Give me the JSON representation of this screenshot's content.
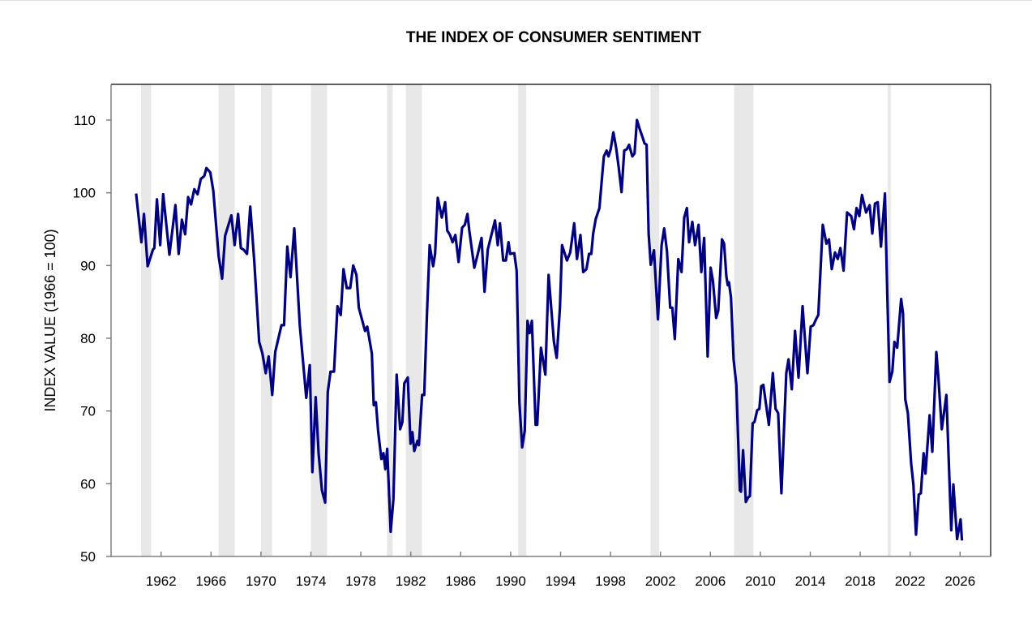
{
  "chart_data": {
    "type": "line",
    "title": "THE INDEX OF CONSUMER SENTIMENT",
    "xlabel": "",
    "ylabel": "INDEX VALUE (1966 = 100)",
    "xlim": [
      1960,
      2028.2
    ],
    "ylim": [
      50,
      115
    ],
    "yticks": [
      50,
      60,
      70,
      80,
      90,
      100,
      110
    ],
    "xticks": [
      1962,
      1966,
      1970,
      1974,
      1978,
      1982,
      1986,
      1990,
      1994,
      1998,
      2002,
      2006,
      2010,
      2014,
      2018,
      2022,
      2026
    ],
    "grid": false,
    "line_color": "#000080",
    "band_color": "#e8e8e8",
    "shaded_periods": [
      [
        1960.4,
        1961.2
      ],
      [
        1966.6,
        1967.9
      ],
      [
        1970.0,
        1970.9
      ],
      [
        1974.0,
        1975.3
      ],
      [
        1980.1,
        1980.55
      ],
      [
        1981.6,
        1982.9
      ],
      [
        1990.6,
        1991.25
      ],
      [
        2001.2,
        2001.9
      ],
      [
        2007.9,
        2009.45
      ],
      [
        2020.2,
        2020.45
      ]
    ],
    "series": [
      {
        "name": "Index of Consumer Sentiment",
        "x": [
          1960.0,
          1960.42,
          1960.63,
          1960.92,
          1961.35,
          1961.46,
          1961.67,
          1961.93,
          1962.17,
          1962.67,
          1963.15,
          1963.41,
          1963.67,
          1963.93,
          1964.17,
          1964.4,
          1964.66,
          1964.92,
          1965.18,
          1965.46,
          1965.63,
          1965.94,
          1966.18,
          1966.61,
          1966.89,
          1967.13,
          1967.63,
          1967.89,
          1968.17,
          1968.39,
          1968.6,
          1968.88,
          1969.14,
          1969.47,
          1969.86,
          1970.12,
          1970.38,
          1970.62,
          1970.9,
          1971.14,
          1971.64,
          1971.85,
          1972.11,
          1972.37,
          1972.67,
          1973.11,
          1973.63,
          1973.91,
          1974.12,
          1974.38,
          1974.62,
          1974.88,
          1975.14,
          1975.35,
          1975.57,
          1975.85,
          1976.13,
          1976.39,
          1976.61,
          1976.87,
          1977.15,
          1977.39,
          1977.65,
          1977.84,
          1978.34,
          1978.51,
          1978.66,
          1978.88,
          1979.03,
          1979.21,
          1979.38,
          1979.64,
          1979.81,
          1979.96,
          1980.11,
          1980.39,
          1980.61,
          1980.87,
          1981.15,
          1981.33,
          1981.48,
          1981.76,
          1981.98,
          1982.13,
          1982.28,
          1982.54,
          1982.65,
          1982.91,
          1983.08,
          1983.3,
          1983.51,
          1983.79,
          1983.95,
          1984.16,
          1984.49,
          1984.75,
          1984.92,
          1985.14,
          1985.35,
          1985.57,
          1985.83,
          1986.11,
          1986.33,
          1986.54,
          1986.69,
          1987.09,
          1987.37,
          1987.67,
          1987.91,
          1988.17,
          1988.49,
          1988.75,
          1988.97,
          1989.14,
          1989.4,
          1989.62,
          1989.83,
          1989.96,
          1990.29,
          1990.48,
          1990.7,
          1990.92,
          1991.13,
          1991.35,
          1991.52,
          1991.7,
          1992.0,
          1992.13,
          1992.43,
          1992.78,
          1993.04,
          1993.47,
          1993.69,
          1993.95,
          1994.12,
          1994.51,
          1994.77,
          1995.09,
          1995.31,
          1995.59,
          1995.81,
          1996.07,
          1996.28,
          1996.46,
          1996.61,
          1996.82,
          1997.11,
          1997.32,
          1997.47,
          1997.69,
          1997.84,
          1998.01,
          1998.23,
          1998.45,
          1998.66,
          1998.88,
          1999.1,
          1999.31,
          1999.49,
          1999.75,
          1999.92,
          2000.12,
          2000.35,
          2000.57,
          2000.72,
          2000.89,
          2001.05,
          2001.22,
          2001.48,
          2001.8,
          2002.09,
          2002.3,
          2002.52,
          2002.78,
          2002.95,
          2003.15,
          2003.43,
          2003.69,
          2003.9,
          2004.12,
          2004.29,
          2004.55,
          2004.77,
          2005.05,
          2005.27,
          2005.5,
          2005.78,
          2006.02,
          2006.2,
          2006.46,
          2006.63,
          2006.93,
          2007.1,
          2007.28,
          2007.39,
          2007.49,
          2007.65,
          2007.86,
          2008.08,
          2008.36,
          2008.45,
          2008.62,
          2008.84,
          2009.01,
          2009.16,
          2009.38,
          2009.53,
          2009.75,
          2009.92,
          2010.07,
          2010.24,
          2010.68,
          2011.0,
          2011.22,
          2011.43,
          2011.69,
          2012.08,
          2012.26,
          2012.52,
          2012.78,
          2013.06,
          2013.38,
          2013.77,
          2014.03,
          2014.25,
          2014.46,
          2014.64,
          2015.0,
          2015.29,
          2015.5,
          2015.72,
          2015.98,
          2016.2,
          2016.41,
          2016.67,
          2016.95,
          2017.28,
          2017.5,
          2017.71,
          2017.93,
          2018.14,
          2018.47,
          2018.75,
          2018.97,
          2019.18,
          2019.4,
          2019.66,
          2019.98,
          2020.16,
          2020.35,
          2020.57,
          2020.74,
          2020.96,
          2021.28,
          2021.43,
          2021.61,
          2021.82,
          2022.08,
          2022.26,
          2022.47,
          2022.69,
          2022.86,
          2023.08,
          2023.23,
          2023.56,
          2023.77,
          2024.1,
          2024.25,
          2024.53,
          2024.9,
          2025.29,
          2025.46,
          2025.76,
          2026.04,
          2026.15
        ],
        "y": [
          99.9,
          93.2,
          97.1,
          89.9,
          92.2,
          92.4,
          99.1,
          92.8,
          99.8,
          91.5,
          98.3,
          91.6,
          96.3,
          94.3,
          99.4,
          98.4,
          100.5,
          99.8,
          101.9,
          102.3,
          103.4,
          102.8,
          100.3,
          91.3,
          88.2,
          94.1,
          96.9,
          92.8,
          97.1,
          92.4,
          92.2,
          91.6,
          98.1,
          90.5,
          79.5,
          77.9,
          75.2,
          77.5,
          72.2,
          78.1,
          81.8,
          81.8,
          92.6,
          88.4,
          95.1,
          81.8,
          71.8,
          76.3,
          61.6,
          71.9,
          64.2,
          59.1,
          57.4,
          72.6,
          75.4,
          75.4,
          84.4,
          83.2,
          89.5,
          86.9,
          86.9,
          90.0,
          88.7,
          84.2,
          81.0,
          81.6,
          80.1,
          77.9,
          70.8,
          71.2,
          67.3,
          63.4,
          64.2,
          62.0,
          64.8,
          53.4,
          57.9,
          75.0,
          67.5,
          68.5,
          73.8,
          74.6,
          65.5,
          67.1,
          64.5,
          65.9,
          65.3,
          72.2,
          72.2,
          83.4,
          92.8,
          89.9,
          91.6,
          99.3,
          96.6,
          98.7,
          94.8,
          94.2,
          93.2,
          94.2,
          90.5,
          95.2,
          95.6,
          97.1,
          94.8,
          89.7,
          91.6,
          93.8,
          86.4,
          92.2,
          94.4,
          96.2,
          92.8,
          95.8,
          90.7,
          90.7,
          93.2,
          91.6,
          91.7,
          89.3,
          71.2,
          65.0,
          67.3,
          82.4,
          80.7,
          82.4,
          68.1,
          68.1,
          78.7,
          75.0,
          88.7,
          79.5,
          77.3,
          84.2,
          92.8,
          90.7,
          91.8,
          95.8,
          90.9,
          94.2,
          89.1,
          89.5,
          91.6,
          91.6,
          94.4,
          96.4,
          97.9,
          102.1,
          105.0,
          105.8,
          105.0,
          106.0,
          108.3,
          106.2,
          103.4,
          100.1,
          105.8,
          106.0,
          106.6,
          105.0,
          105.4,
          110.0,
          108.7,
          107.6,
          106.8,
          106.6,
          94.4,
          90.1,
          92.1,
          82.6,
          92.8,
          95.1,
          92.0,
          84.2,
          84.2,
          79.9,
          90.9,
          89.1,
          96.6,
          97.9,
          93.2,
          96.0,
          92.8,
          95.6,
          89.1,
          93.8,
          77.5,
          89.7,
          87.9,
          82.8,
          83.8,
          93.6,
          93.0,
          88.5,
          87.3,
          87.7,
          85.6,
          77.1,
          73.6,
          59.1,
          58.9,
          64.6,
          57.5,
          58.1,
          58.3,
          68.3,
          68.5,
          70.1,
          70.3,
          73.4,
          73.6,
          68.1,
          75.2,
          70.3,
          69.7,
          58.7,
          75.2,
          77.1,
          73.0,
          81.0,
          74.6,
          84.4,
          75.2,
          81.6,
          81.8,
          82.6,
          83.2,
          95.6,
          93.0,
          93.6,
          89.5,
          91.8,
          90.9,
          92.4,
          89.3,
          97.3,
          96.8,
          95.0,
          97.9,
          96.8,
          99.7,
          97.3,
          98.3,
          94.4,
          98.5,
          98.7,
          92.6,
          99.9,
          86.5,
          74.0,
          75.4,
          79.5,
          78.7,
          85.4,
          83.4,
          71.6,
          69.7,
          62.8,
          59.9,
          53.0,
          58.5,
          58.7,
          64.2,
          61.4,
          69.4,
          64.4,
          78.1,
          74.8,
          67.5,
          72.2,
          53.6,
          59.9,
          52.4,
          55.1,
          52.2
        ]
      }
    ]
  }
}
